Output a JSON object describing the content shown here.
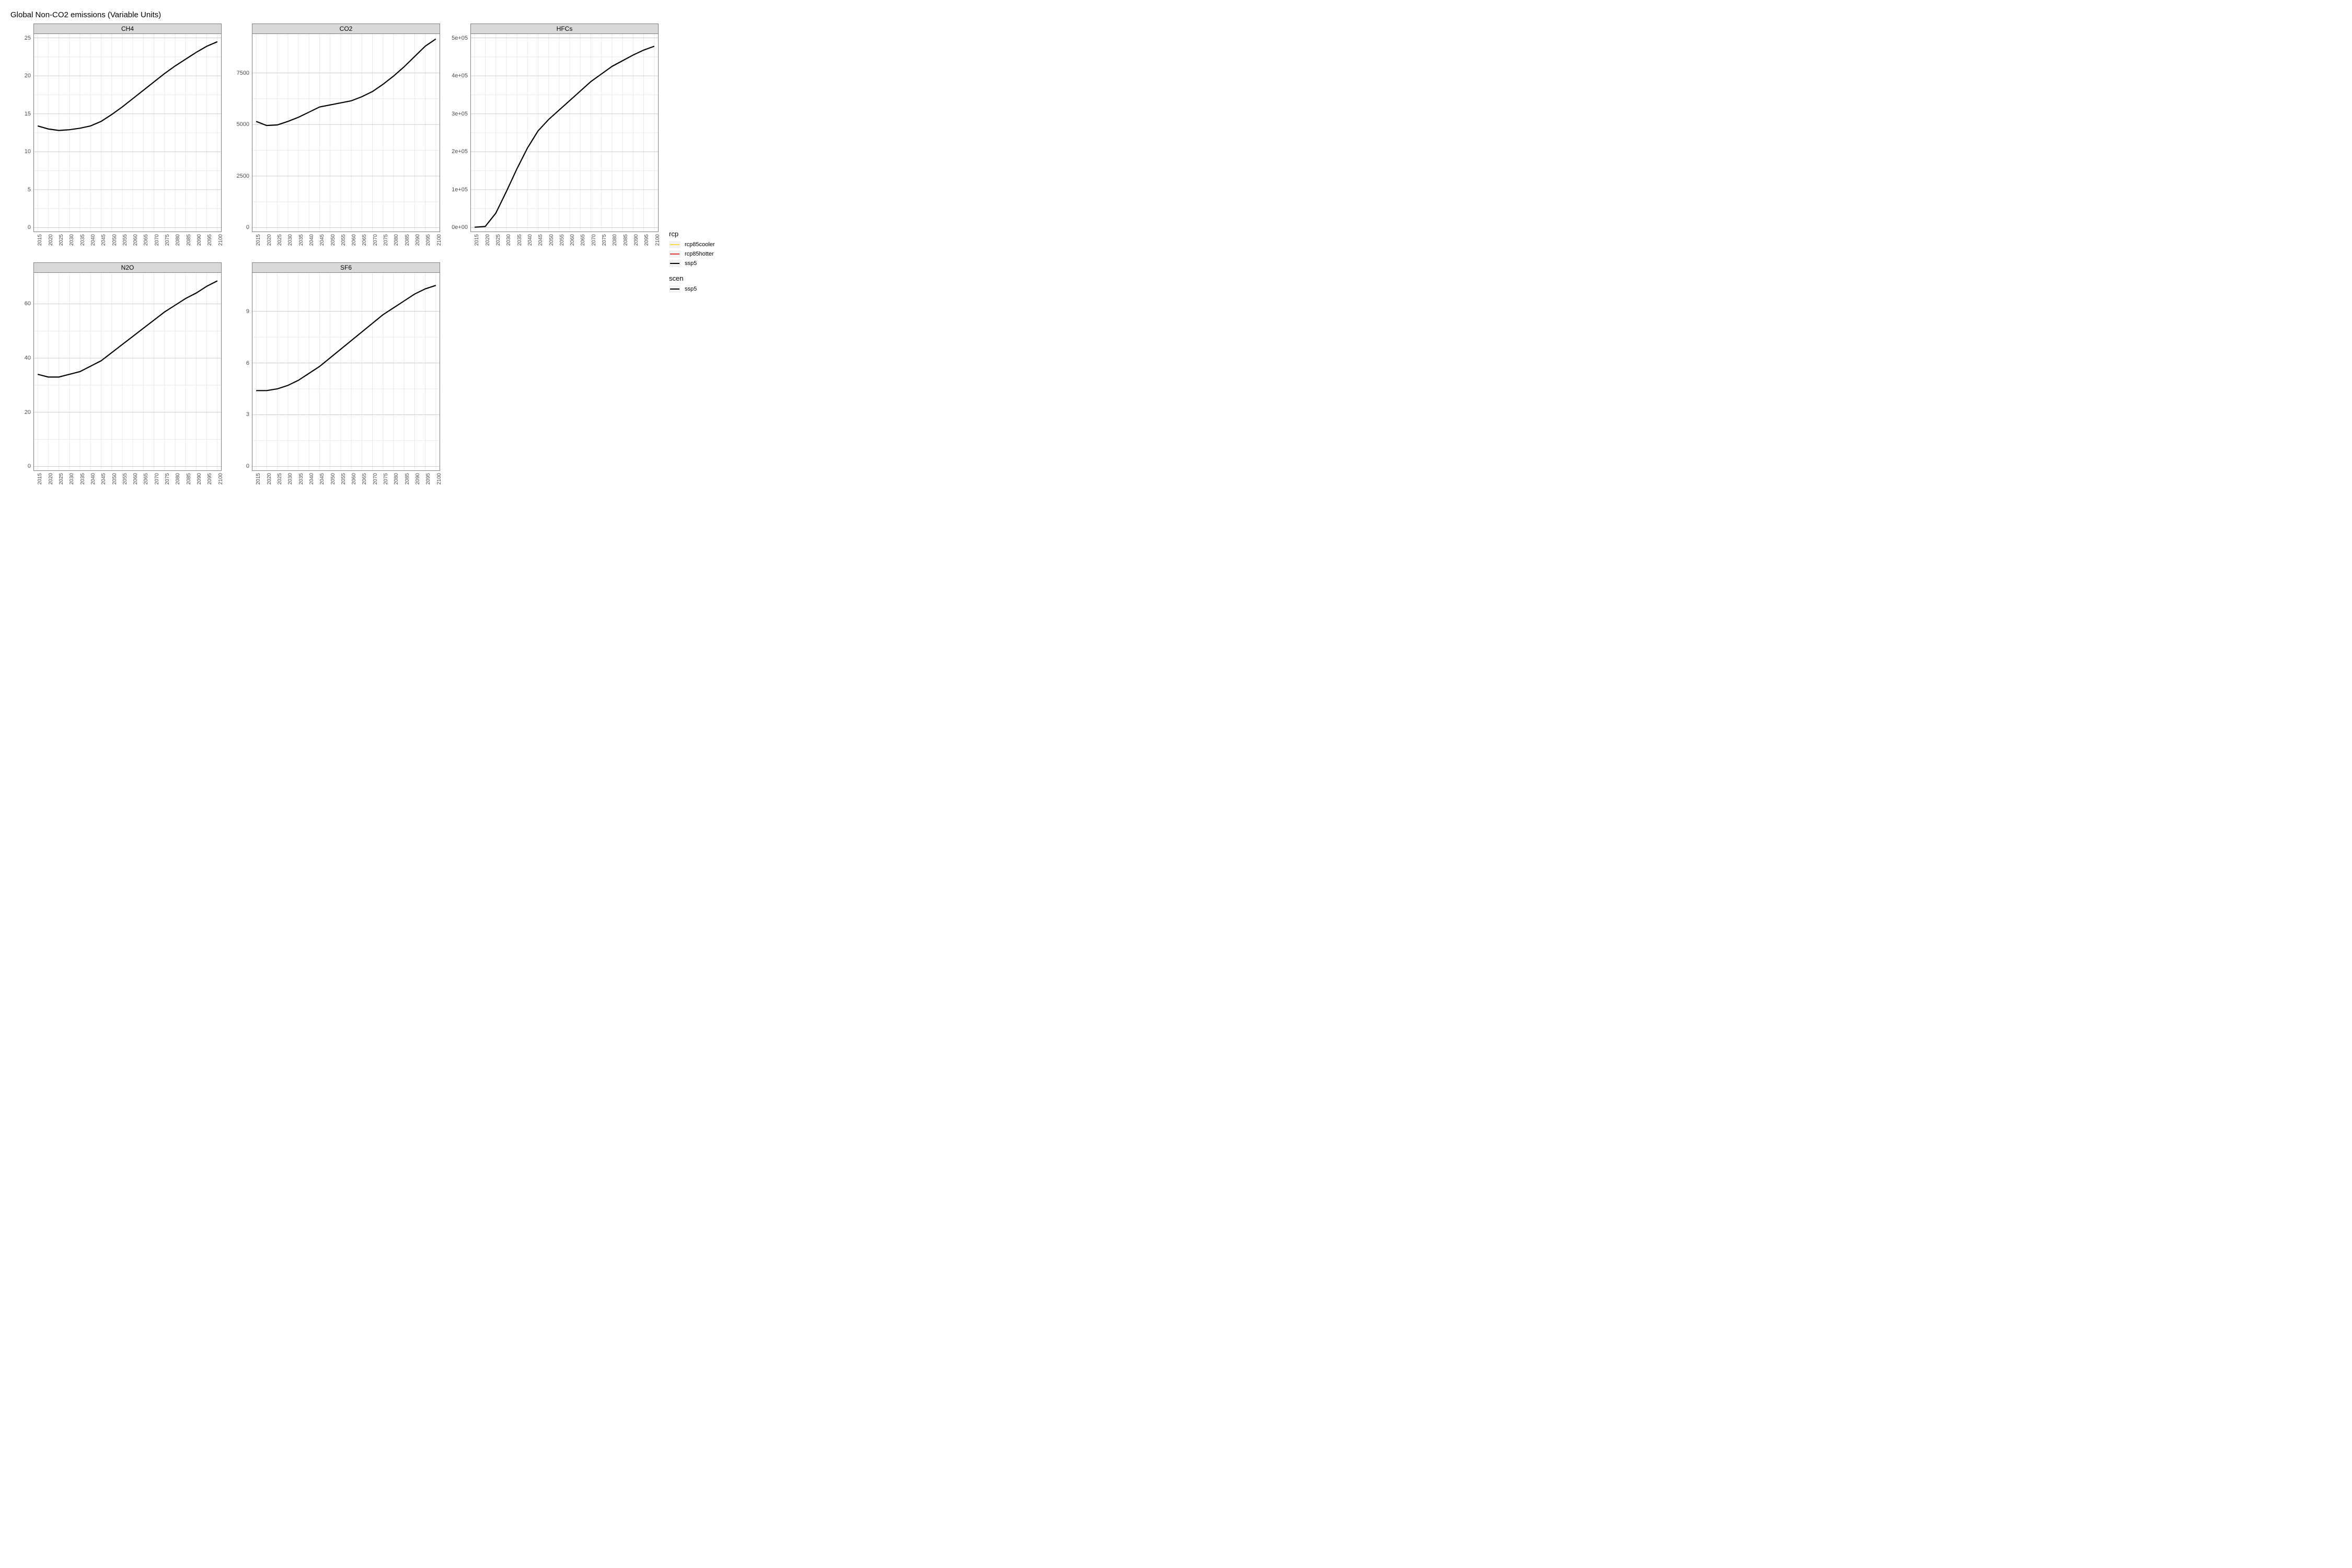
{
  "title": "Global Non-CO2 emissions (Variable Units)",
  "background_color": "#ffffff",
  "panel_border_color": "#7f7f7f",
  "strip_bg": "#d9d9d9",
  "grid_major_color": "#cccccc",
  "grid_minor_color": "#e8e8e8",
  "series_color_ssp5": "#000000",
  "line_width": 2.2,
  "x_categories": [
    "2015",
    "2020",
    "2025",
    "2030",
    "2035",
    "2040",
    "2045",
    "2050",
    "2055",
    "2060",
    "2065",
    "2070",
    "2075",
    "2080",
    "2085",
    "2090",
    "2095",
    "2100"
  ],
  "panels": [
    {
      "label": "CH4",
      "ylim": [
        0,
        25
      ],
      "yticks": [
        0,
        5,
        10,
        15,
        20,
        25
      ],
      "yticklabels": [
        "0",
        "5",
        "10",
        "15",
        "20",
        "25"
      ],
      "values": [
        13.4,
        13.0,
        12.8,
        12.9,
        13.1,
        13.4,
        14.0,
        14.9,
        15.9,
        17.0,
        18.1,
        19.2,
        20.3,
        21.3,
        22.2,
        23.1,
        23.9,
        24.5
      ]
    },
    {
      "label": "CO2",
      "ylim": [
        0,
        9200
      ],
      "yticks": [
        0,
        2500,
        5000,
        7500
      ],
      "yticklabels": [
        "0",
        "2500",
        "5000",
        "7500"
      ],
      "values": [
        5150,
        4950,
        4980,
        5150,
        5350,
        5600,
        5850,
        5950,
        6050,
        6150,
        6350,
        6600,
        6950,
        7350,
        7800,
        8300,
        8800,
        9150
      ]
    },
    {
      "label": "HFCs",
      "ylim": [
        0,
        500000
      ],
      "yticks": [
        0,
        100000,
        200000,
        300000,
        400000,
        500000
      ],
      "yticklabels": [
        "0e+00",
        "1e+05",
        "2e+05",
        "3e+05",
        "4e+05",
        "5e+05"
      ],
      "values": [
        1000,
        3000,
        38000,
        95000,
        155000,
        210000,
        255000,
        285000,
        310000,
        335000,
        360000,
        385000,
        405000,
        425000,
        440000,
        455000,
        468000,
        478000
      ]
    },
    {
      "label": "N2O",
      "ylim": [
        0,
        70
      ],
      "yticks": [
        0,
        20,
        40,
        60
      ],
      "yticklabels": [
        "0",
        "20",
        "40",
        "60"
      ],
      "values": [
        34,
        33,
        33,
        34,
        35,
        37,
        39,
        42,
        45,
        48,
        51,
        54,
        57,
        59.5,
        62,
        64,
        66.5,
        68.5
      ]
    },
    {
      "label": "SF6",
      "ylim": [
        0,
        11
      ],
      "yticks": [
        0,
        3,
        6,
        9
      ],
      "yticklabels": [
        "0",
        "3",
        "6",
        "9"
      ],
      "values": [
        4.4,
        4.4,
        4.5,
        4.7,
        5.0,
        5.4,
        5.8,
        6.3,
        6.8,
        7.3,
        7.8,
        8.3,
        8.8,
        9.2,
        9.6,
        10.0,
        10.3,
        10.5
      ]
    }
  ],
  "legend": {
    "rcp_title": "rcp",
    "rcp_items": [
      {
        "label": "rcp85cooler",
        "color": "#f8d949"
      },
      {
        "label": "rcp85hotter",
        "color": "#e03b3b"
      },
      {
        "label": "ssp5",
        "color": "#000000"
      }
    ],
    "scen_title": "scen",
    "scen_items": [
      {
        "label": "ssp5",
        "color": "#000000"
      }
    ]
  }
}
